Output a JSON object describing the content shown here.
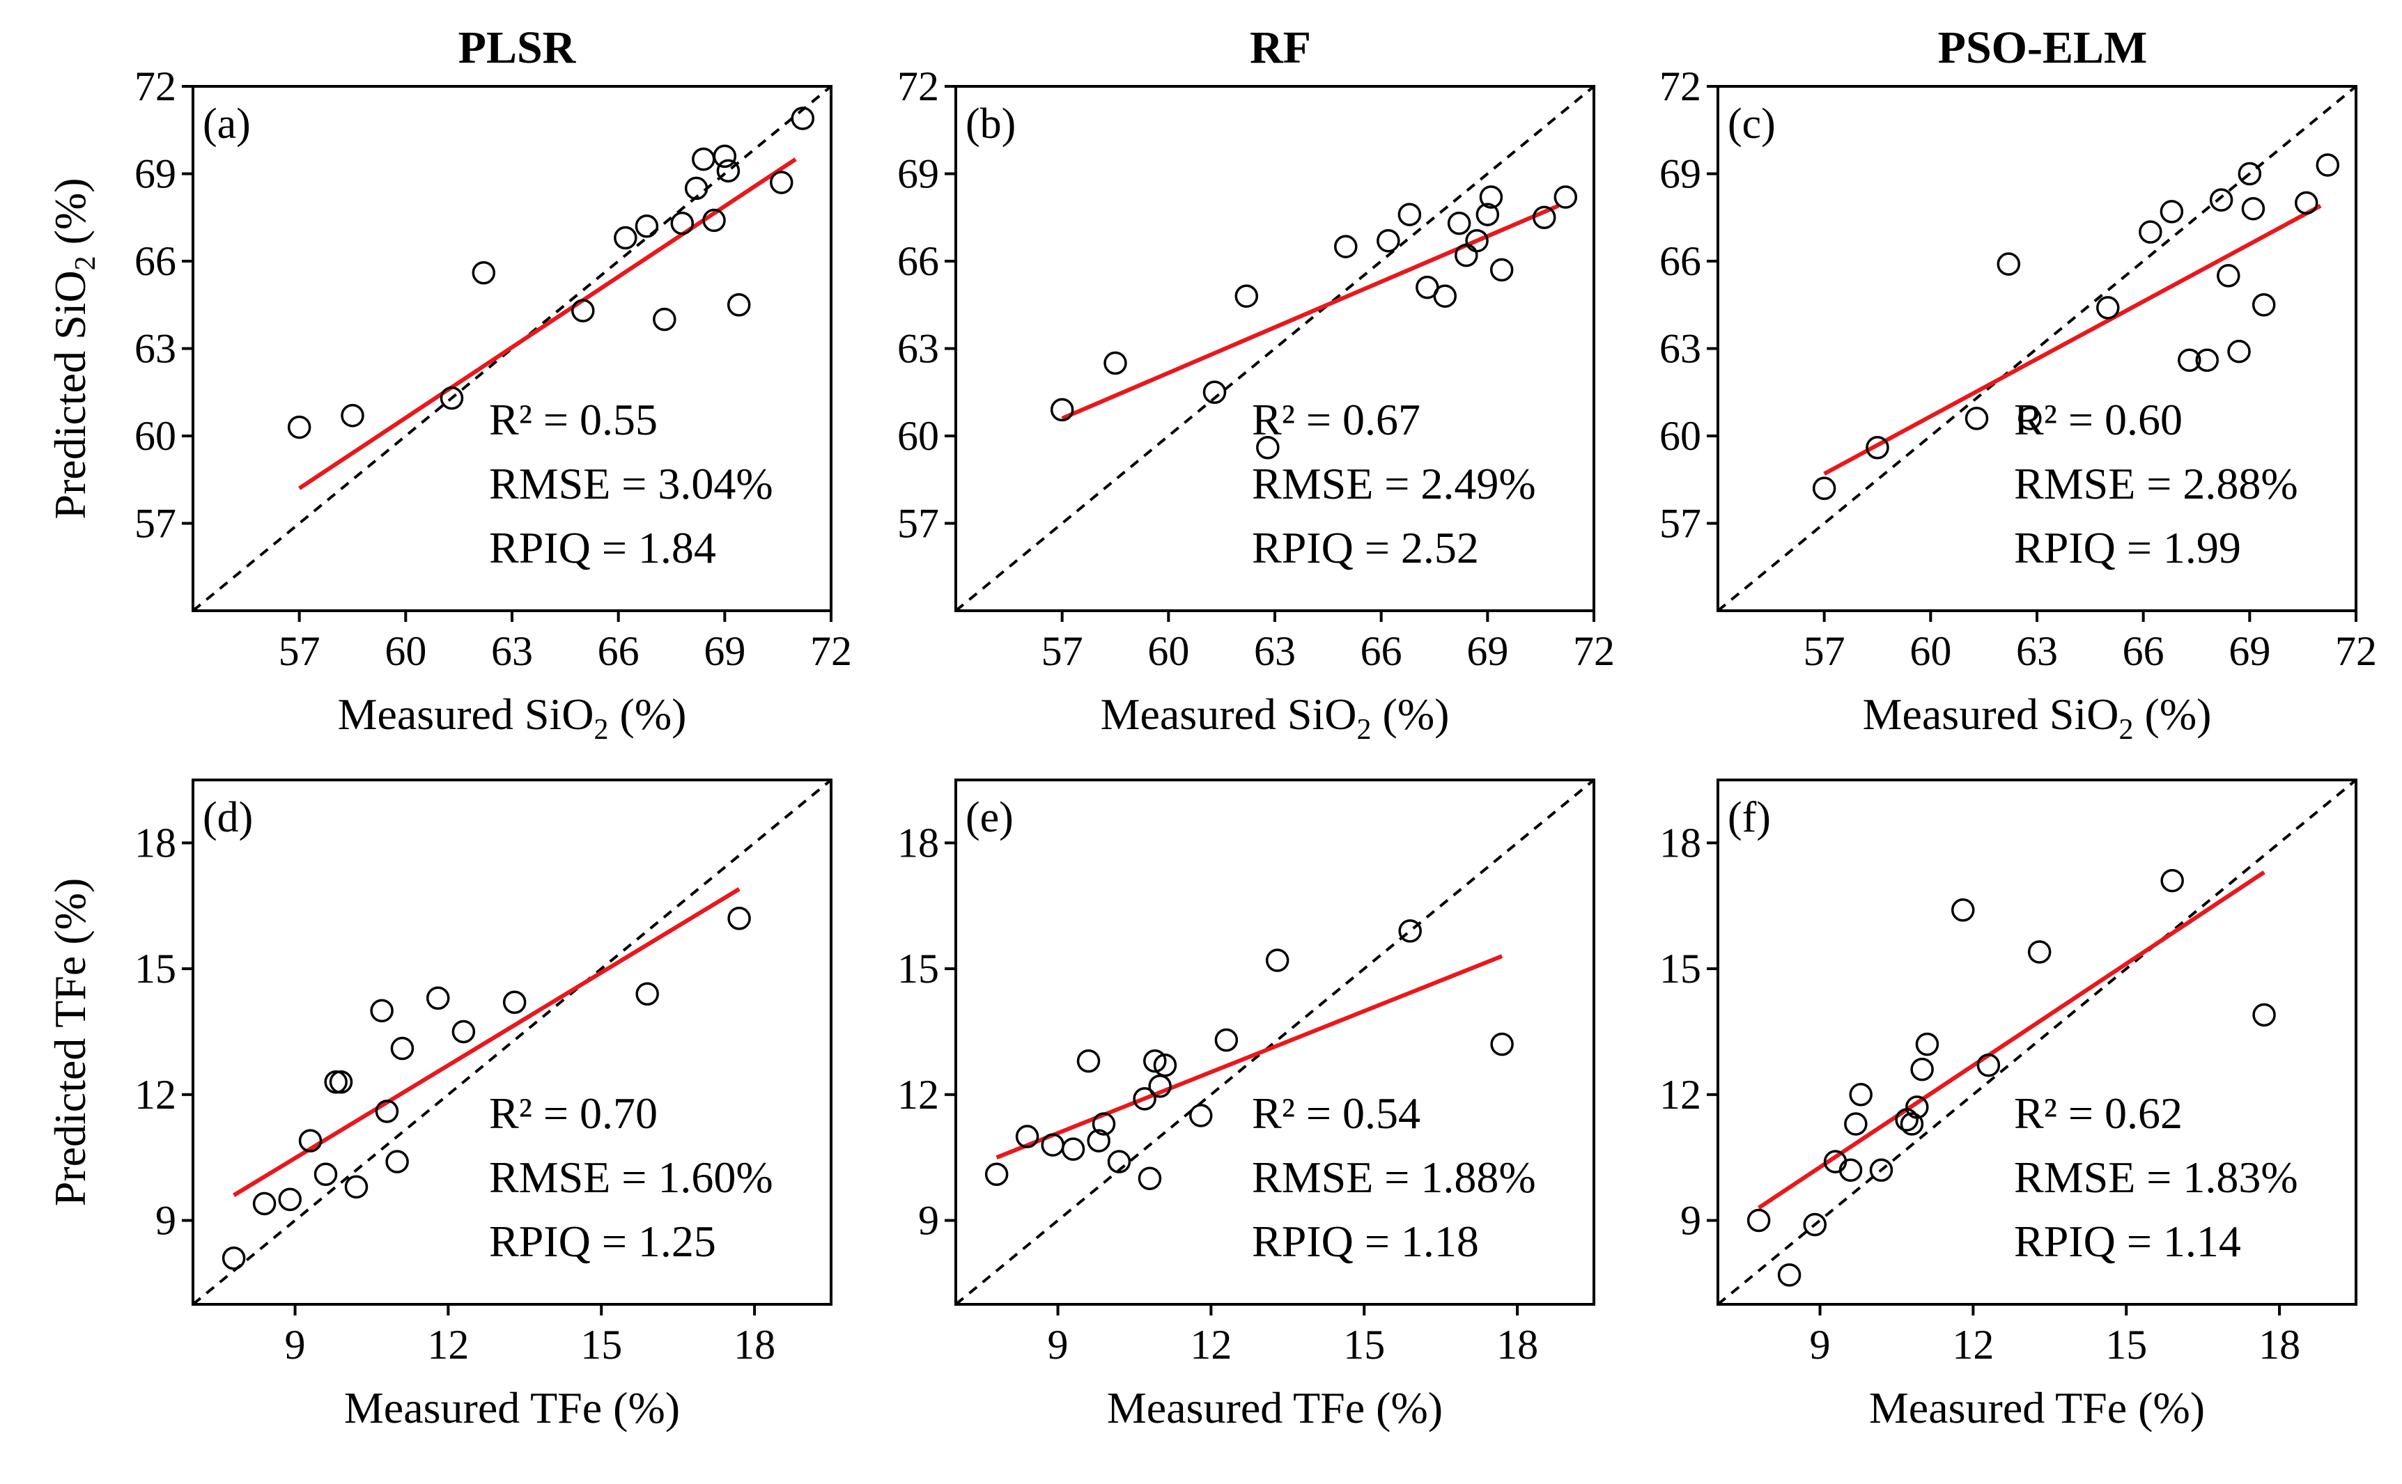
{
  "figure": {
    "column_titles": [
      "PLSR",
      "RF",
      "PSO-ELM"
    ],
    "colors": {
      "fit_line": "#e8181c",
      "points": "#000000",
      "identity_line": "#000000",
      "background": "#ffffff"
    }
  },
  "chart_data": [
    {
      "type": "scatter",
      "panel_label": "(a)",
      "model": "PLSR",
      "variable": "SiO2",
      "xlabel": "Measured SiO2 (%)",
      "ylabel": "Predicted SiO2 (%)",
      "xlim": [
        54,
        72
      ],
      "ylim": [
        54,
        72
      ],
      "ticks": [
        57,
        60,
        63,
        66,
        69,
        72
      ],
      "x": [
        57.0,
        58.5,
        61.3,
        62.2,
        65.0,
        66.2,
        66.8,
        67.3,
        67.8,
        68.2,
        68.4,
        68.7,
        69.0,
        69.1,
        69.4,
        70.6,
        71.2
      ],
      "y": [
        60.3,
        60.7,
        61.3,
        65.6,
        64.3,
        66.8,
        67.2,
        64.0,
        67.3,
        68.5,
        69.5,
        67.4,
        69.6,
        69.1,
        64.5,
        68.7,
        70.9
      ],
      "fit": {
        "x": [
          57.0,
          71.0
        ],
        "y": [
          58.2,
          69.5
        ]
      },
      "stats": [
        "R² = 0.55",
        "RMSE = 3.04%",
        "RPIQ = 1.84"
      ]
    },
    {
      "type": "scatter",
      "panel_label": "(b)",
      "model": "RF",
      "variable": "SiO2",
      "xlabel": "Measured SiO2 (%)",
      "ylabel": "",
      "xlim": [
        54,
        72
      ],
      "ylim": [
        54,
        72
      ],
      "ticks": [
        57,
        60,
        63,
        66,
        69,
        72
      ],
      "x": [
        57.0,
        58.5,
        61.3,
        62.2,
        62.8,
        65.0,
        66.2,
        66.8,
        67.3,
        67.8,
        68.2,
        68.4,
        68.7,
        69.0,
        69.1,
        69.4,
        70.6,
        71.2
      ],
      "y": [
        60.9,
        62.5,
        61.5,
        64.8,
        59.6,
        66.5,
        66.7,
        67.6,
        65.1,
        64.8,
        67.3,
        66.2,
        66.7,
        67.6,
        68.2,
        65.7,
        67.5,
        68.2
      ],
      "fit": {
        "x": [
          57.0,
          71.0
        ],
        "y": [
          60.6,
          67.9
        ]
      },
      "stats": [
        "R² = 0.67",
        "RMSE = 2.49%",
        "RPIQ = 2.52"
      ]
    },
    {
      "type": "scatter",
      "panel_label": "(c)",
      "model": "PSO-ELM",
      "variable": "SiO2",
      "xlabel": "Measured SiO2 (%)",
      "ylabel": "",
      "xlim": [
        54,
        72
      ],
      "ylim": [
        54,
        72
      ],
      "ticks": [
        57,
        60,
        63,
        66,
        69,
        72
      ],
      "x": [
        57.0,
        58.5,
        61.3,
        62.2,
        62.8,
        65.0,
        66.2,
        66.8,
        67.3,
        67.8,
        68.2,
        68.4,
        68.7,
        69.0,
        69.1,
        69.4,
        70.6,
        71.2
      ],
      "y": [
        58.2,
        59.6,
        60.6,
        65.9,
        60.6,
        64.4,
        67.0,
        67.7,
        62.6,
        62.6,
        68.1,
        65.5,
        62.9,
        69.0,
        67.8,
        64.5,
        68.0,
        69.3
      ],
      "fit": {
        "x": [
          57.0,
          71.0
        ],
        "y": [
          58.7,
          67.9
        ]
      },
      "stats": [
        "R² = 0.60",
        "RMSE = 2.88%",
        "RPIQ = 1.99"
      ]
    },
    {
      "type": "scatter",
      "panel_label": "(d)",
      "model": "PLSR",
      "variable": "TFe",
      "xlabel": "Measured TFe (%)",
      "ylabel": "Predicted TFe (%)",
      "xlim": [
        7,
        19.5
      ],
      "ylim": [
        7,
        19.5
      ],
      "ticks": [
        9,
        12,
        15,
        18
      ],
      "x": [
        7.8,
        8.4,
        8.9,
        9.3,
        9.6,
        9.8,
        9.9,
        10.2,
        10.7,
        10.8,
        11.0,
        11.1,
        11.8,
        12.3,
        13.3,
        15.9,
        17.7
      ],
      "y": [
        8.1,
        9.4,
        9.5,
        10.9,
        10.1,
        12.3,
        12.3,
        9.8,
        14.0,
        11.6,
        10.4,
        13.1,
        14.3,
        13.5,
        14.2,
        14.4,
        16.2
      ],
      "fit": {
        "x": [
          7.8,
          17.7
        ],
        "y": [
          9.6,
          16.9
        ]
      },
      "stats": [
        "R² = 0.70",
        "RMSE = 1.60%",
        "RPIQ = 1.25"
      ]
    },
    {
      "type": "scatter",
      "panel_label": "(e)",
      "model": "RF",
      "variable": "TFe",
      "xlabel": "Measured TFe (%)",
      "ylabel": "",
      "xlim": [
        7,
        19.5
      ],
      "ylim": [
        7,
        19.5
      ],
      "ticks": [
        9,
        12,
        15,
        18
      ],
      "x": [
        7.8,
        8.4,
        8.9,
        9.3,
        9.6,
        9.8,
        9.9,
        10.2,
        10.7,
        10.8,
        10.9,
        11.0,
        11.1,
        11.8,
        12.3,
        13.3,
        15.9,
        17.7
      ],
      "y": [
        10.1,
        11.0,
        10.8,
        10.7,
        12.8,
        10.9,
        11.3,
        10.4,
        11.9,
        10.0,
        12.8,
        12.2,
        12.7,
        11.5,
        13.3,
        15.2,
        15.9,
        13.2
      ],
      "fit": {
        "x": [
          7.8,
          17.7
        ],
        "y": [
          10.5,
          15.3
        ]
      },
      "stats": [
        "R² = 0.54",
        "RMSE = 1.88%",
        "RPIQ = 1.18"
      ]
    },
    {
      "type": "scatter",
      "panel_label": "(f)",
      "model": "PSO-ELM",
      "variable": "TFe",
      "xlabel": "Measured TFe (%)",
      "ylabel": "",
      "xlim": [
        7,
        19.5
      ],
      "ylim": [
        7,
        19.5
      ],
      "ticks": [
        9,
        12,
        15,
        18
      ],
      "x": [
        7.8,
        8.4,
        8.9,
        9.3,
        9.6,
        9.7,
        9.8,
        10.2,
        10.7,
        10.8,
        10.9,
        11.0,
        11.1,
        11.8,
        12.3,
        13.3,
        15.9,
        17.7
      ],
      "y": [
        9.0,
        7.7,
        8.9,
        10.4,
        10.2,
        11.3,
        12.0,
        10.2,
        11.4,
        11.3,
        11.7,
        12.6,
        13.2,
        16.4,
        12.7,
        15.4,
        17.1,
        13.9
      ],
      "fit": {
        "x": [
          7.8,
          17.7
        ],
        "y": [
          9.3,
          17.3
        ]
      },
      "stats": [
        "R² = 0.62",
        "RMSE = 1.83%",
        "RPIQ = 1.14"
      ]
    }
  ]
}
